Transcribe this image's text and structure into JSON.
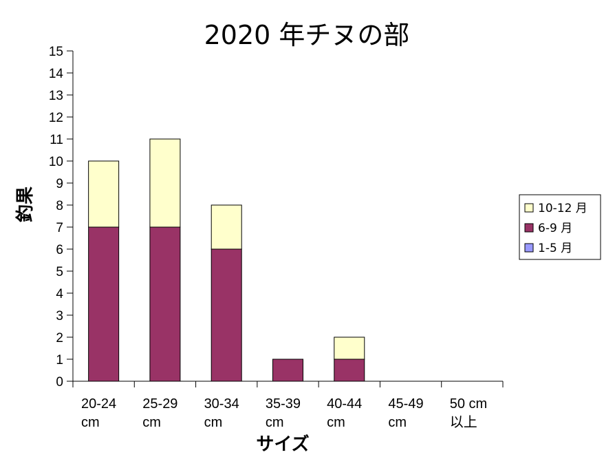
{
  "chart_data": {
    "type": "bar",
    "stacked": true,
    "title": "2020 年チヌの部",
    "xlabel": "サイズ",
    "ylabel": "釣果",
    "ylim": [
      0,
      15
    ],
    "yticks": [
      "0",
      "1",
      "2",
      "3",
      "4",
      "5",
      "6",
      "7",
      "8",
      "9",
      "10",
      "11",
      "12",
      "13",
      "14",
      "15"
    ],
    "categories": [
      [
        "20-24",
        "cm"
      ],
      [
        "25-29",
        "cm"
      ],
      [
        "30-34",
        "cm"
      ],
      [
        "35-39",
        "cm"
      ],
      [
        "40-44",
        "cm"
      ],
      [
        "45-49",
        "cm"
      ],
      [
        "50 cm",
        "以上"
      ]
    ],
    "series": [
      {
        "name": "1-5 月",
        "color": "#9999ff",
        "values": [
          0,
          0,
          0,
          0,
          0,
          0,
          0
        ]
      },
      {
        "name": "6-9 月",
        "color": "#993366",
        "values": [
          7,
          7,
          6,
          1,
          1,
          0,
          0
        ]
      },
      {
        "name": "10-12 月",
        "color": "#ffffcc",
        "values": [
          3,
          4,
          2,
          0,
          1,
          0,
          0
        ]
      }
    ],
    "legend_order": [
      "10-12 月",
      "6-9 月",
      "1-5 月"
    ],
    "legend_position": "right",
    "grid": false
  }
}
